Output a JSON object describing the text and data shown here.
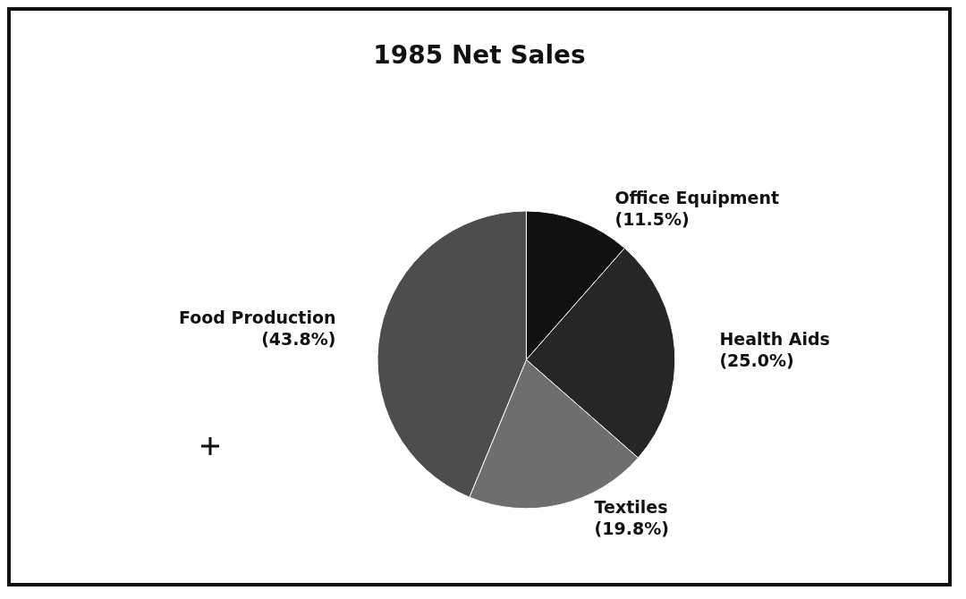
{
  "chart_data": {
    "type": "pie",
    "title": "1985 Net Sales",
    "categories": [
      "Office Equipment",
      "Health Aids",
      "Textiles",
      "Food Production"
    ],
    "values": [
      11.5,
      25.0,
      19.8,
      43.8
    ],
    "value_labels": [
      "(11.5%)",
      "(25.0%)",
      "(19.8%)",
      "(43.8%)"
    ],
    "colors": [
      "#111111",
      "#262626",
      "#6e6e6e",
      "#4d4d4d"
    ],
    "legend": false
  }
}
